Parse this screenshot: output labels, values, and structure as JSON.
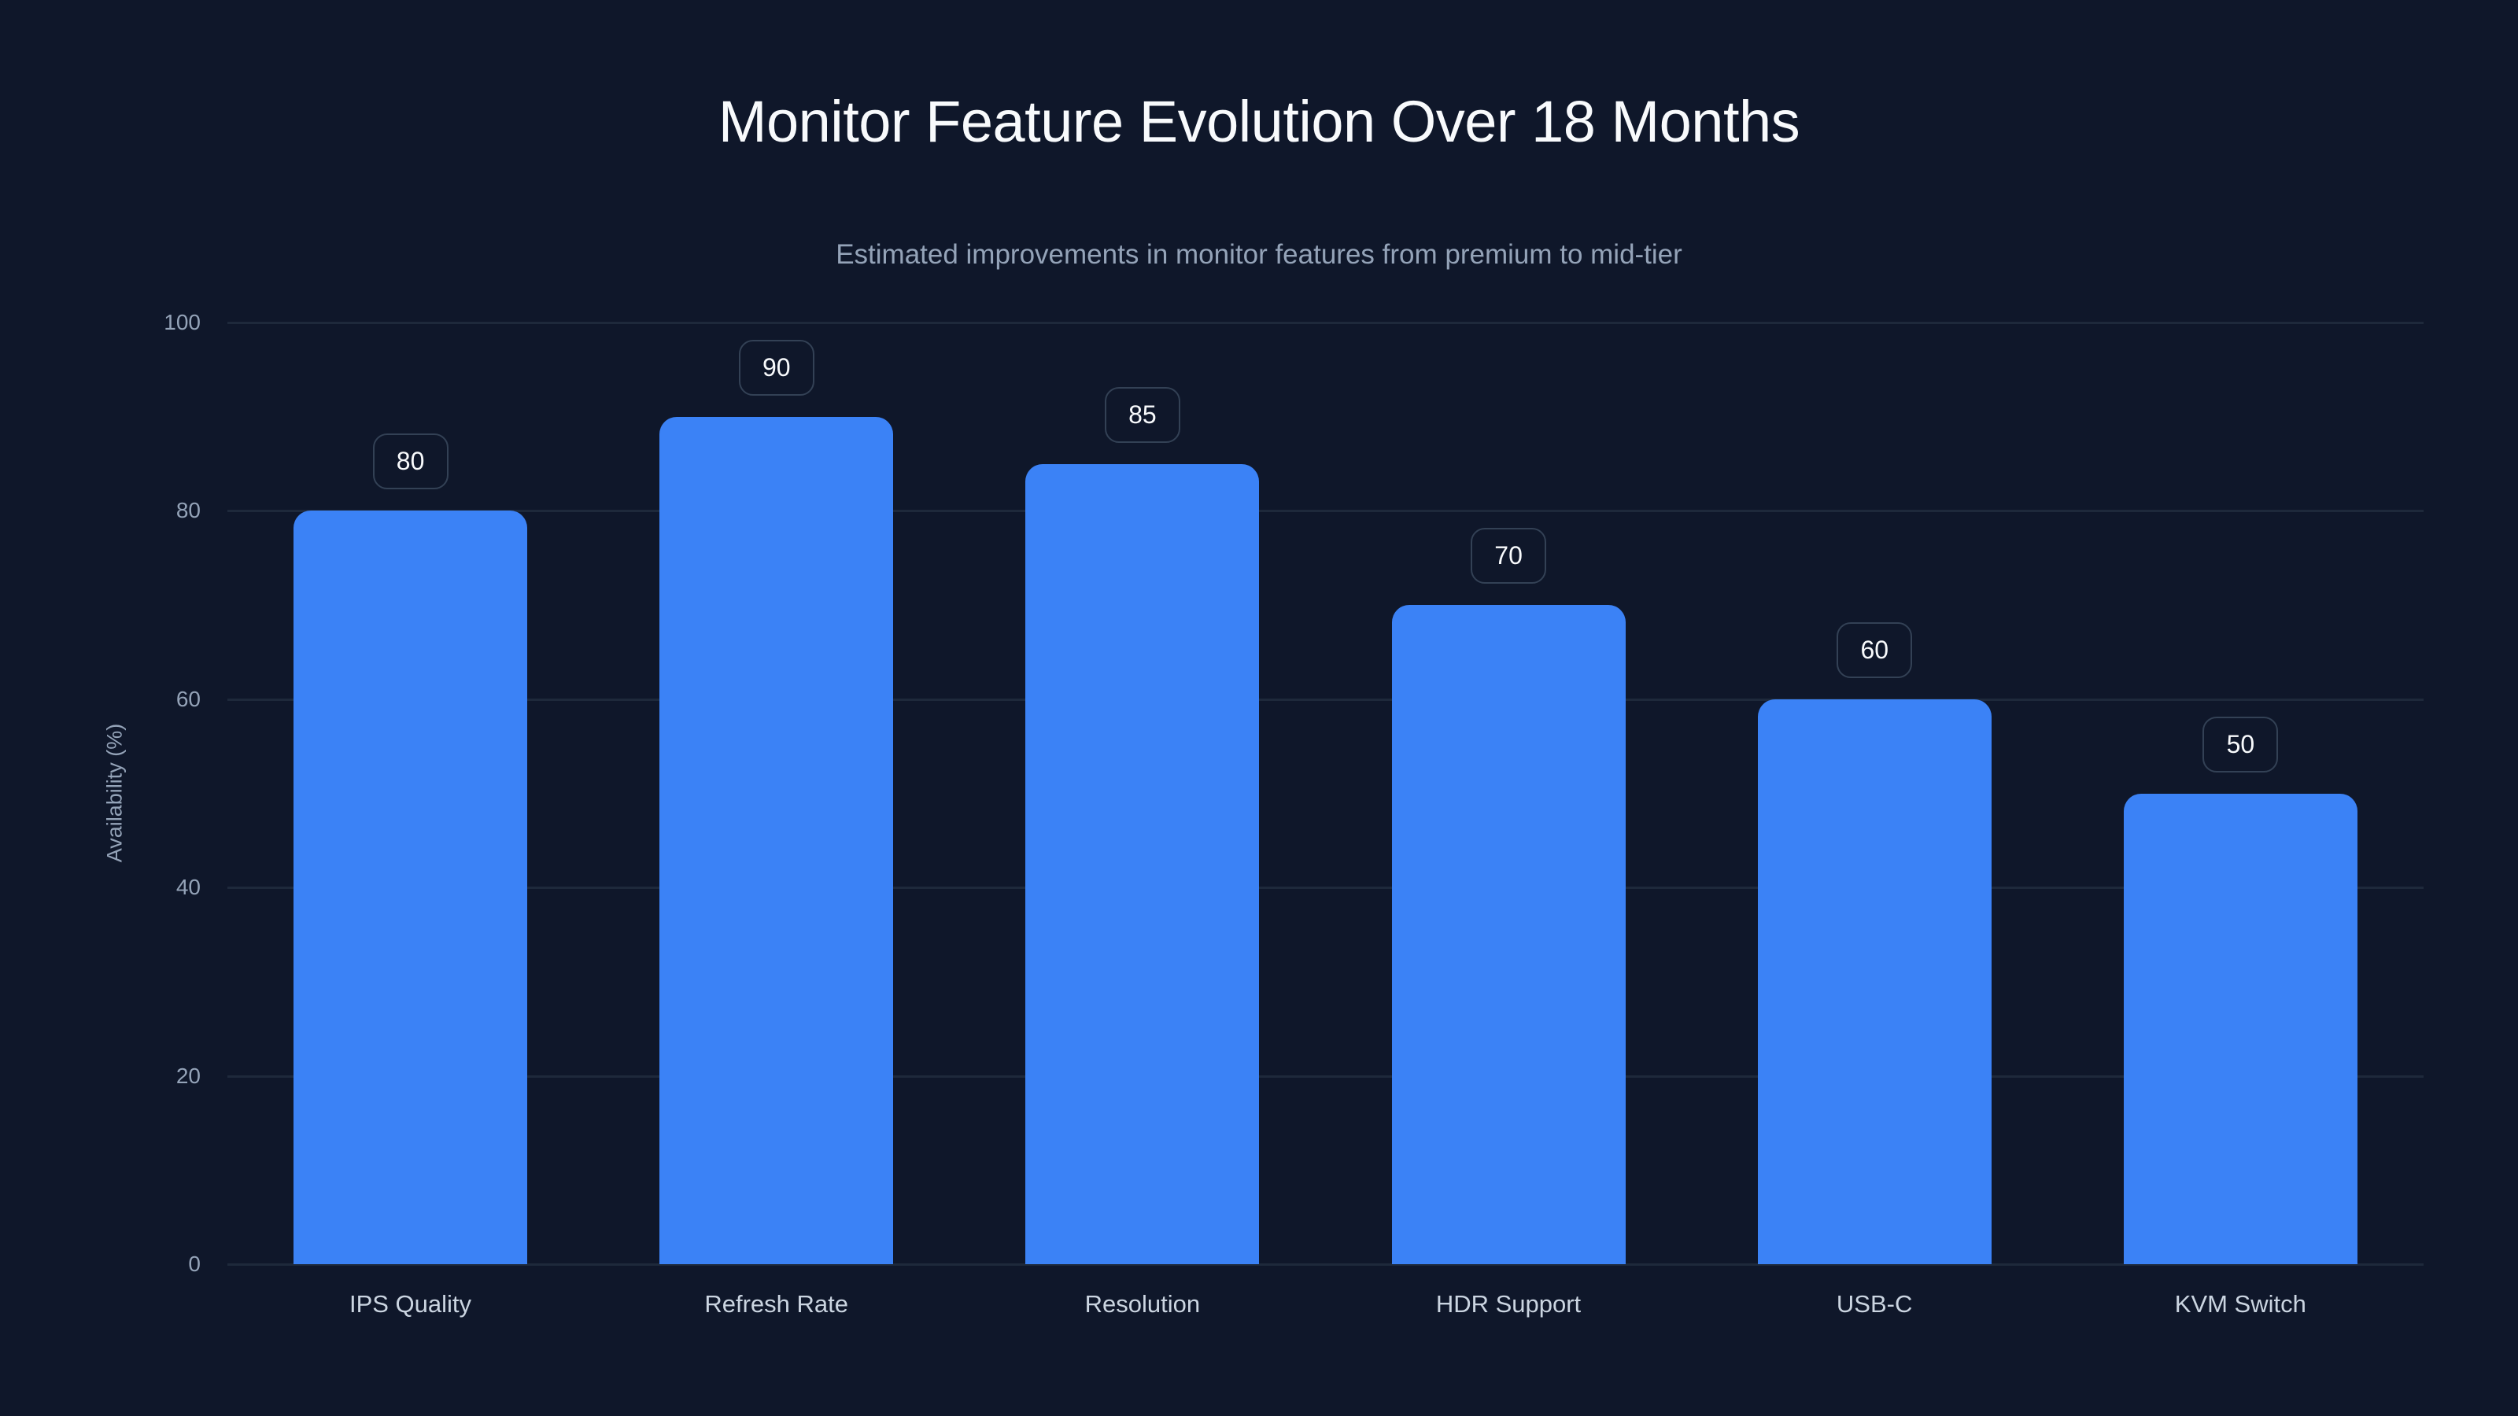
{
  "header": {
    "title": "Monitor Feature Evolution Over 18 Months",
    "subtitle": "Estimated improvements in monitor features from premium to mid-tier"
  },
  "axes": {
    "ylabel": "Availability (%)",
    "yticks": [
      "0",
      "20",
      "40",
      "60",
      "80",
      "100"
    ]
  },
  "colors": {
    "background": "#0f172a",
    "bar": "#3b82f6",
    "grid": "#1e293b",
    "badge_border": "#334155"
  },
  "chart_data": {
    "type": "bar",
    "title": "Monitor Feature Evolution Over 18 Months",
    "subtitle": "Estimated improvements in monitor features from premium to mid-tier",
    "categories": [
      "IPS Quality",
      "Refresh Rate",
      "Resolution",
      "HDR Support",
      "USB-C",
      "KVM Switch"
    ],
    "values": [
      80,
      90,
      85,
      70,
      60,
      50
    ],
    "xlabel": "",
    "ylabel": "Availability (%)",
    "ylim": [
      0,
      100
    ],
    "yticks": [
      0,
      20,
      40,
      60,
      80,
      100
    ],
    "grid": true,
    "legend": null,
    "data_labels": true
  }
}
